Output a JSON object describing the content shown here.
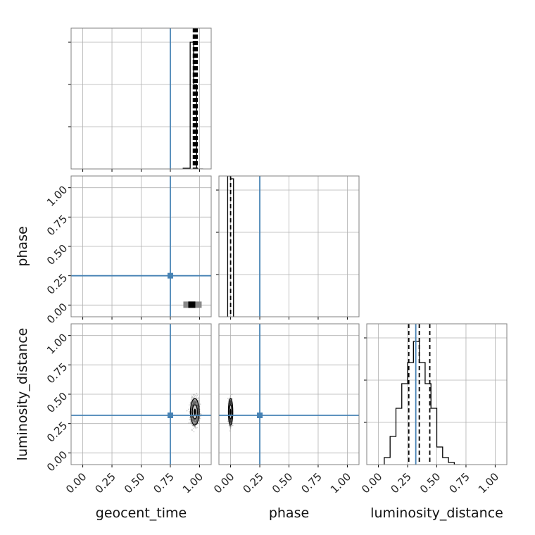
{
  "chart_data": {
    "type": "corner",
    "parameters": [
      "geocent_time",
      "phase",
      "luminosity_distance"
    ],
    "axis_range": [
      -0.1,
      1.1
    ],
    "ticks": [
      0.0,
      0.25,
      0.5,
      0.75,
      1.0
    ],
    "tick_labels": [
      "0.00",
      "0.25",
      "0.50",
      "0.75",
      "1.00"
    ],
    "injection": {
      "geocent_time": 0.75,
      "phase": 0.25,
      "luminosity_distance": 0.32
    },
    "injection_color": "#4682b4",
    "grid": true,
    "histograms": [
      {
        "parameter": "geocent_time",
        "bin_edges": [
          0.86,
          0.92,
          0.95,
          0.975,
          1.03
        ],
        "counts": [
          0.5,
          90,
          60,
          0
        ],
        "ymax": 100,
        "quantile_lines": [
          0.957,
          0.964,
          0.971
        ]
      },
      {
        "parameter": "phase",
        "bin_edges": [
          -0.025,
          0.0,
          0.025
        ],
        "counts": [
          100,
          98
        ],
        "ymax": 100,
        "quantile_lines": [
          0.0
        ]
      },
      {
        "parameter": "luminosity_distance",
        "bin_edges": [
          0.05,
          0.1,
          0.15,
          0.2,
          0.25,
          0.3,
          0.35,
          0.4,
          0.45,
          0.5,
          0.55,
          0.6,
          0.65,
          0.7
        ],
        "counts": [
          2,
          8,
          16,
          23,
          29,
          35,
          29,
          23,
          16,
          5,
          2,
          0.6,
          0
        ],
        "ymax": 40,
        "quantile_lines": [
          0.26,
          0.35,
          0.44
        ]
      }
    ],
    "scatter_2d": [
      {
        "x_param": "geocent_time",
        "y_param": "phase",
        "x_mean": 0.94,
        "y_mean": 0.0,
        "x_spread": 0.04,
        "y_spread": 0.01
      },
      {
        "x_param": "geocent_time",
        "y_param": "luminosity_distance",
        "x_mean": 0.96,
        "y_mean": 0.35,
        "x_spread": 0.04,
        "y_spread": 0.12
      },
      {
        "x_param": "phase",
        "y_param": "luminosity_distance",
        "x_mean": 0.0,
        "y_mean": 0.35,
        "x_spread": 0.015,
        "y_spread": 0.12
      }
    ]
  }
}
